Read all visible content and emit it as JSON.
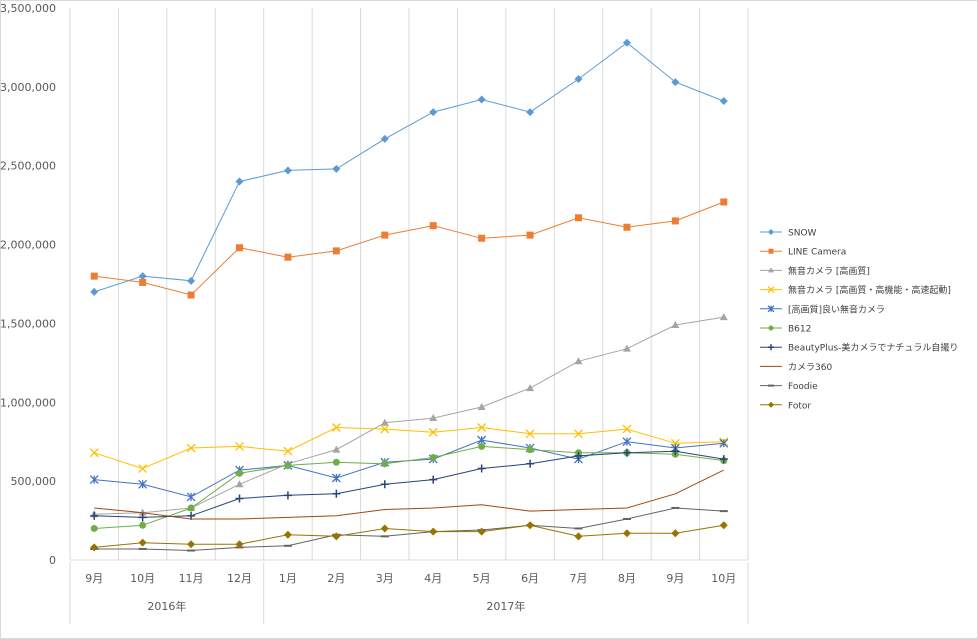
{
  "chart_data": {
    "type": "line",
    "title": "",
    "xlabel": "",
    "ylabel": "",
    "ylim": [
      0,
      3500000
    ],
    "y_ticks": [
      "0",
      "500,000",
      "1,000,000",
      "1,500,000",
      "2,000,000",
      "2,500,000",
      "3,000,000",
      "3,500,000"
    ],
    "y_tick_values": [
      0,
      500000,
      1000000,
      1500000,
      2000000,
      2500000,
      3000000,
      3500000
    ],
    "categories": [
      "9月",
      "10月",
      "11月",
      "12月",
      "1月",
      "2月",
      "3月",
      "4月",
      "5月",
      "6月",
      "7月",
      "8月",
      "9月",
      "10月"
    ],
    "year_groups": [
      {
        "label": "2016年",
        "start": 0,
        "end": 3
      },
      {
        "label": "2017年",
        "start": 4,
        "end": 13
      }
    ],
    "grid": true,
    "legend_position": "right",
    "series": [
      {
        "name": "SNOW",
        "color": "#5b9bd5",
        "marker": "diamond",
        "values": [
          1700000,
          1800000,
          1770000,
          2400000,
          2470000,
          2480000,
          2670000,
          2840000,
          2920000,
          2840000,
          3050000,
          3280000,
          3030000,
          2910000
        ]
      },
      {
        "name": "LINE Camera",
        "color": "#ed7d31",
        "marker": "square",
        "values": [
          1800000,
          1760000,
          1680000,
          1980000,
          1920000,
          1960000,
          2060000,
          2120000,
          2040000,
          2060000,
          2170000,
          2110000,
          2150000,
          2270000
        ]
      },
      {
        "name": "無音カメラ [高画質]",
        "color": "#a5a5a5",
        "marker": "triangle",
        "values": [
          290000,
          300000,
          330000,
          480000,
          610000,
          700000,
          870000,
          900000,
          970000,
          1090000,
          1260000,
          1340000,
          1490000,
          1540000
        ]
      },
      {
        "name": "無音カメラ [高画質・高機能・高速起動]",
        "color": "#ffc000",
        "marker": "x",
        "values": [
          680000,
          580000,
          710000,
          720000,
          690000,
          840000,
          830000,
          810000,
          840000,
          800000,
          800000,
          830000,
          740000,
          750000
        ]
      },
      {
        "name": "[高画質]良い無音カメラ",
        "color": "#4472c4",
        "marker": "star",
        "values": [
          510000,
          480000,
          400000,
          570000,
          600000,
          520000,
          620000,
          640000,
          760000,
          710000,
          640000,
          750000,
          710000,
          740000
        ]
      },
      {
        "name": "B612",
        "color": "#70ad47",
        "marker": "circle",
        "values": [
          200000,
          220000,
          330000,
          550000,
          600000,
          620000,
          610000,
          650000,
          720000,
          700000,
          680000,
          680000,
          670000,
          630000
        ]
      },
      {
        "name": "BeautyPlus-美カメラでナチュラル自撮り",
        "color": "#264478",
        "marker": "plus",
        "values": [
          280000,
          270000,
          280000,
          390000,
          410000,
          420000,
          480000,
          510000,
          580000,
          610000,
          660000,
          680000,
          690000,
          640000
        ]
      },
      {
        "name": "カメラ360",
        "color": "#9e480e",
        "marker": "none",
        "values": [
          330000,
          300000,
          260000,
          260000,
          270000,
          280000,
          320000,
          330000,
          350000,
          310000,
          320000,
          330000,
          420000,
          570000
        ]
      },
      {
        "name": "Foodie",
        "color": "#636363",
        "marker": "dash",
        "values": [
          70000,
          70000,
          60000,
          80000,
          90000,
          160000,
          150000,
          180000,
          190000,
          220000,
          200000,
          260000,
          330000,
          310000
        ]
      },
      {
        "name": "Fotor",
        "color": "#997300",
        "marker": "diamond",
        "values": [
          80000,
          110000,
          100000,
          100000,
          160000,
          150000,
          200000,
          180000,
          180000,
          220000,
          150000,
          170000,
          170000,
          220000
        ]
      }
    ]
  }
}
